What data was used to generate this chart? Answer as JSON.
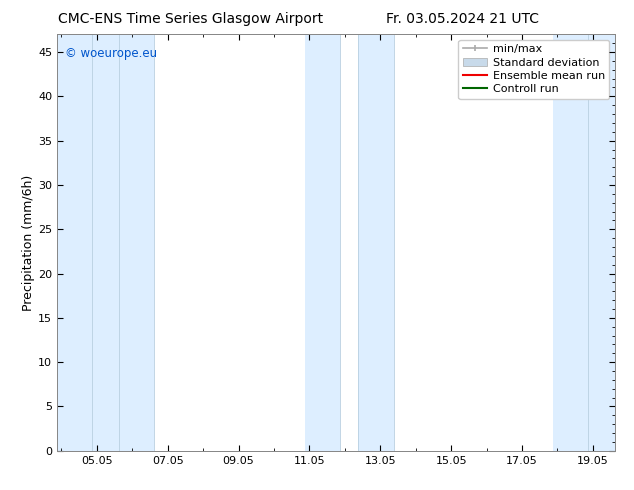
{
  "title_left": "CMC-ENS Time Series Glasgow Airport",
  "title_right": "Fr. 03.05.2024 21 UTC",
  "ylabel": "Precipitation (mm/6h)",
  "ylim": [
    0,
    47
  ],
  "yticks": [
    0,
    5,
    10,
    15,
    20,
    25,
    30,
    35,
    40,
    45
  ],
  "watermark": "© woeurope.eu",
  "watermark_color": "#0055cc",
  "background_color": "#ffffff",
  "plot_bg_color": "#ffffff",
  "band_color": "#ddeeff",
  "legend_labels": [
    "min/max",
    "Standard deviation",
    "Ensemble mean run",
    "Controll run"
  ],
  "legend_colors_line": [
    "#999999",
    "#c8d8e8",
    "#ff0000",
    "#006600"
  ],
  "xtick_days": [
    5,
    7,
    9,
    11,
    13,
    15,
    17,
    19
  ],
  "xlim": [
    3.875,
    19.625
  ],
  "bands": [
    [
      3.875,
      5.625
    ],
    [
      5.625,
      6.625
    ],
    [
      10.875,
      11.875
    ],
    [
      12.375,
      13.375
    ],
    [
      17.875,
      19.625
    ]
  ],
  "title_fontsize": 10,
  "tick_fontsize": 8,
  "label_fontsize": 9,
  "legend_fontsize": 8
}
